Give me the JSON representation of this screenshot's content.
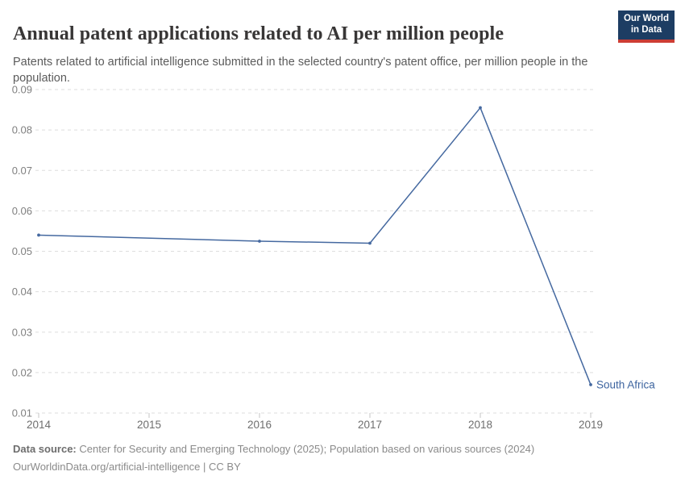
{
  "header": {
    "title": "Annual patent applications related to AI per million people",
    "subtitle": "Patents related to artificial intelligence submitted in the selected country's patent office, per million people in the population.",
    "logo": {
      "line1": "Our World",
      "line2": "in Data",
      "bg_color": "#1d3d63",
      "accent_color": "#cd3d34",
      "text_color": "#ffffff"
    }
  },
  "chart_data": {
    "type": "line",
    "title": "Annual patent applications related to AI per million people",
    "xlabel": "",
    "ylabel": "",
    "x_ticks": [
      2014,
      2015,
      2016,
      2017,
      2018,
      2019
    ],
    "y_ticks": [
      0.01,
      0.02,
      0.03,
      0.04,
      0.05,
      0.06,
      0.07,
      0.08,
      0.09
    ],
    "ylim": [
      0.01,
      0.09
    ],
    "xlim": [
      2014,
      2019
    ],
    "grid": "horizontal-dashed",
    "gridline_color": "#dddddd",
    "tick_label_color": "#6e6e6e",
    "series": [
      {
        "name": "South Africa",
        "color": "#4569a0",
        "label_color": "#3d649f",
        "points": [
          {
            "x": 2014,
            "y": 0.054
          },
          {
            "x": 2016,
            "y": 0.0525
          },
          {
            "x": 2017,
            "y": 0.052
          },
          {
            "x": 2018,
            "y": 0.0855
          },
          {
            "x": 2019,
            "y": 0.017
          }
        ]
      }
    ],
    "legend": "end-of-line label"
  },
  "footer": {
    "source_label": "Data source:",
    "source_text": " Center for Security and Emerging Technology (2025); Population based on various sources (2024)",
    "license_text": "OurWorldinData.org/artificial-intelligence | CC BY"
  }
}
